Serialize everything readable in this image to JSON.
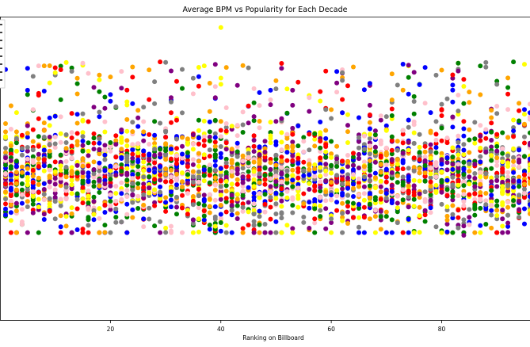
{
  "chart_data": {
    "type": "scatter",
    "title": "Average BPM vs Popularity for Each Decade",
    "xlabel": "Ranking on Billboard",
    "ylabel": "",
    "xlim": [
      0,
      96
    ],
    "ylim": [
      -4,
      218
    ],
    "x_ticks": [
      20,
      40,
      60,
      80
    ],
    "grid": false,
    "legend": "upper-left, cropped at left edge (entries not legible)",
    "series_colors": [
      "#ff0000",
      "#ffa500",
      "#ffff00",
      "#008000",
      "#0000ff",
      "#800080",
      "#ffc0cb",
      "#808080"
    ],
    "approx_points_per_series": 380,
    "notable_points": [
      {
        "x": 40,
        "y": 210,
        "color": "#ffff00"
      },
      {
        "x": 15,
        "y": 184,
        "color": "#ffc0cb"
      },
      {
        "x": 8,
        "y": 182,
        "color": "#ffa500"
      },
      {
        "x": 7,
        "y": 182,
        "color": "#ffc0cb"
      },
      {
        "x": 84,
        "y": 58,
        "color": "#800080"
      }
    ],
    "value_range_note": "Points span rankings 1-96 with values concentrated roughly between 60 and 135, most dense around 80-120."
  }
}
